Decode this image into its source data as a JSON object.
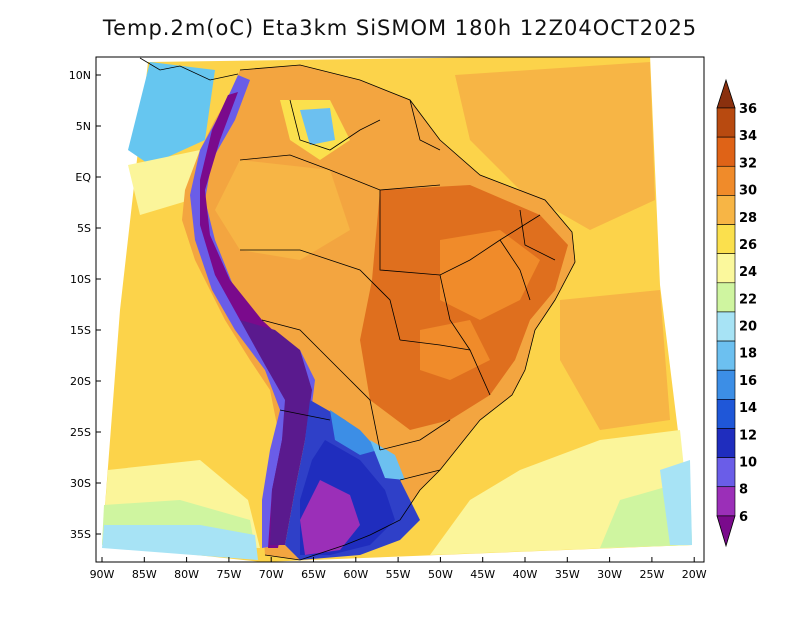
{
  "title": "Temp.2m(oC) Eta3km SiSMOM 180h 12Z04OCT2025",
  "lat_labels": [
    "10N",
    "5N",
    "EQ",
    "5S",
    "10S",
    "15S",
    "20S",
    "25S",
    "30S",
    "35S"
  ],
  "lon_labels": [
    "90W",
    "85W",
    "80W",
    "75W",
    "70W",
    "65W",
    "60W",
    "55W",
    "50W",
    "45W",
    "40W",
    "35W",
    "30W",
    "25W",
    "20W"
  ],
  "colorbar": {
    "labels": [
      "6",
      "8",
      "10",
      "12",
      "14",
      "16",
      "18",
      "20",
      "22",
      "24",
      "26",
      "28",
      "30",
      "32",
      "34",
      "36"
    ],
    "colors": [
      "#7a0a8c",
      "#9b2fb8",
      "#6a5de8",
      "#1f2dbe",
      "#1f57d8",
      "#3c8ee6",
      "#6cc0f0",
      "#a7e3f5",
      "#cff5a0",
      "#fbf89c",
      "#fbe04d",
      "#f7b545",
      "#f08b2a",
      "#df6317",
      "#b84a10",
      "#8a300e"
    ]
  },
  "colors": {
    "land_warm": "#f3a540",
    "land_hot": "#df6f1e",
    "ocean_warm": "#fcd34a",
    "ocean_cool": "#fbf59a",
    "andes_cold": "#5a1a8e",
    "south_cold": "#2f40c8"
  }
}
